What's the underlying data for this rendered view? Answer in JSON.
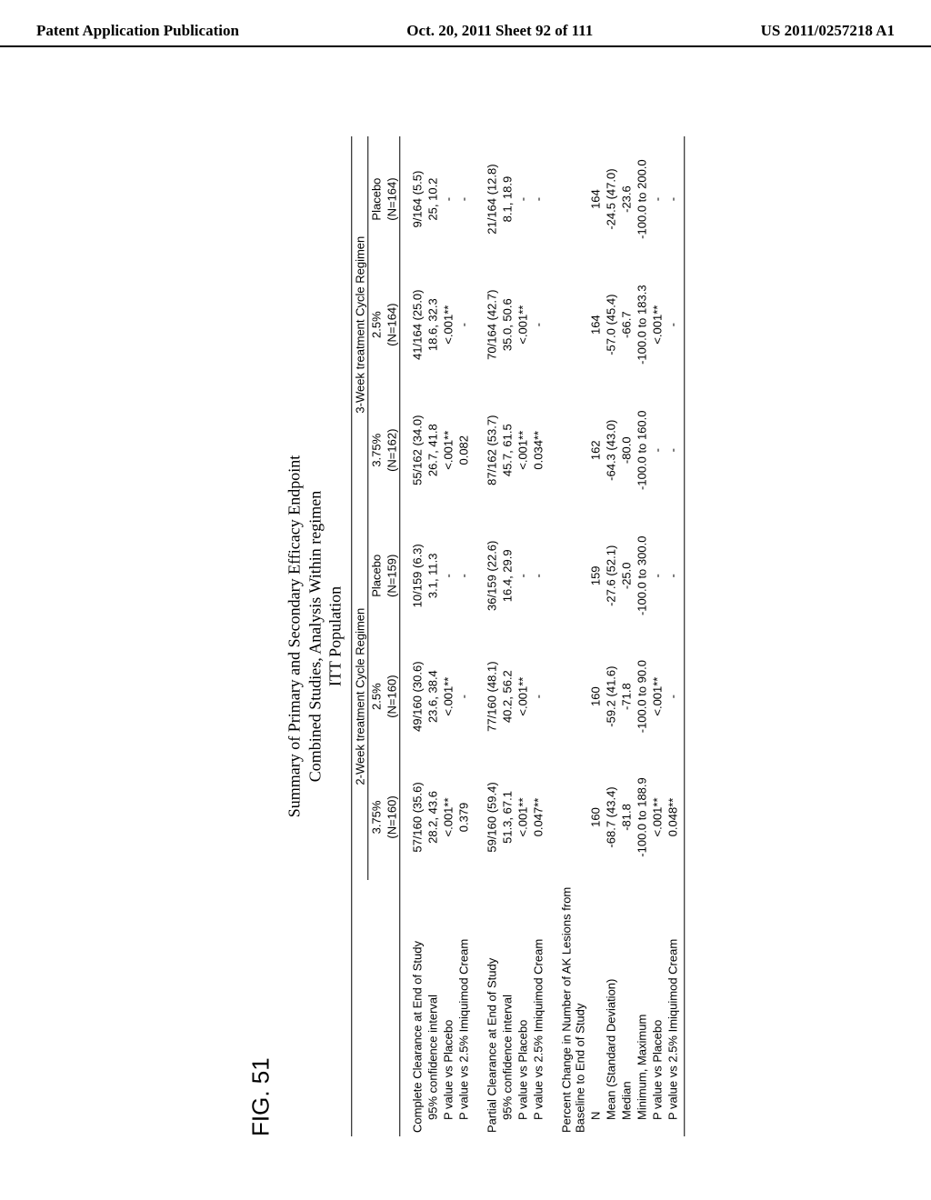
{
  "header": {
    "left": "Patent Application Publication",
    "center": "Oct. 20, 2011  Sheet 92 of 111",
    "right": "US 2011/0257218 A1"
  },
  "figure_label": "FIG. 51",
  "title_lines": [
    "Summary of Primary and Secondary Efficacy Endpoint",
    "Combined Studies, Analysis Within regimen",
    "ITT Population"
  ],
  "column_groups": [
    "2-Week treatment Cycle Regimen",
    "3-Week treatment Cycle Regimen"
  ],
  "columns": [
    {
      "label": "3.75%",
      "n": "(N=160)"
    },
    {
      "label": "2.5%",
      "n": "(N=160)"
    },
    {
      "label": "Placebo",
      "n": "(N=159)"
    },
    {
      "label": "3.75%",
      "n": "(N=162)"
    },
    {
      "label": "2.5%",
      "n": "(N=164)"
    },
    {
      "label": "Placebo",
      "n": "(N=164)"
    }
  ],
  "sections": [
    {
      "rows": [
        {
          "label": "Complete Clearance at End of Study",
          "indent": false,
          "cells": [
            "57/160 (35.6)",
            "49/160 (30.6)",
            "10/159 (6.3)",
            "55/162 (34.0)",
            "41/164 (25.0)",
            "9/164 (5.5)"
          ]
        },
        {
          "label": "95% confidence interval",
          "indent": true,
          "cells": [
            "28.2, 43.6",
            "23.6, 38.4",
            "3.1, 11.3",
            "26.7, 41.8",
            "18.6, 32.3",
            "25, 10.2"
          ]
        },
        {
          "label": "P value vs Placebo",
          "indent": true,
          "cells": [
            "<.001**",
            "<.001**",
            "-",
            "<.001**",
            "<.001**",
            "-"
          ]
        },
        {
          "label": "P value vs 2.5% Imiquimod Cream",
          "indent": true,
          "cells": [
            "0.379",
            "-",
            "-",
            "0.082",
            "-",
            "-"
          ]
        }
      ]
    },
    {
      "rows": [
        {
          "label": "Partial Clearance at End of Study",
          "indent": false,
          "cells": [
            "59/160 (59.4)",
            "77/160 (48.1)",
            "36/159 (22.6)",
            "87/162 (53.7)",
            "70/164 (42.7)",
            "21/164 (12.8)"
          ]
        },
        {
          "label": "95% confidence interval",
          "indent": true,
          "cells": [
            "51.3, 67.1",
            "40.2, 56.2",
            "16.4, 29.9",
            "45.7, 61.5",
            "35.0, 50.6",
            "8.1, 18.9"
          ]
        },
        {
          "label": "P value vs Placebo",
          "indent": true,
          "cells": [
            "<.001**",
            "<.001**",
            "-",
            "<.001**",
            "<.001**",
            "-"
          ]
        },
        {
          "label": "P value vs 2.5% Imiquimod Cream",
          "indent": true,
          "cells": [
            "0.047**",
            "-",
            "-",
            "0.034**",
            "-",
            "-"
          ]
        }
      ]
    },
    {
      "rows": [
        {
          "label": "Percent Change in Number of AK Lesions from Baseline to End of Study",
          "indent": false,
          "cells": [
            "",
            "",
            "",
            "",
            "",
            ""
          ]
        },
        {
          "label": "N",
          "indent": true,
          "cells": [
            "160",
            "160",
            "159",
            "162",
            "164",
            "164"
          ]
        },
        {
          "label": "Mean (Standard Deviation)",
          "indent": true,
          "cells": [
            "-68.7 (43.4)",
            "-59.2 (41.6)",
            "-27.6 (52.1)",
            "-64.3 (43.0)",
            "-57.0 (45.4)",
            "-24.5 (47.0)"
          ]
        },
        {
          "label": "Median",
          "indent": true,
          "cells": [
            "-81.8",
            "-71.8",
            "-25.0",
            "-80.0",
            "-66.7",
            "-23.6"
          ]
        },
        {
          "label": "Minimum, Maximum",
          "indent": true,
          "cells": [
            "-100.0 to 188.9",
            "-100.0 to 90.0",
            "-100.0 to 300.0",
            "-100.0 to 160.0",
            "-100.0 to 183.3",
            "-100.0 to 200.0"
          ]
        },
        {
          "label": "P value vs Placebo",
          "indent": true,
          "cells": [
            "<.001**",
            "<.001**",
            "-",
            "-",
            "<.001**",
            "-"
          ]
        },
        {
          "label": "P value vs 2.5% Imiquimod Cream",
          "indent": true,
          "cells": [
            "0.048**",
            "-",
            "-",
            "-",
            "-",
            "-"
          ]
        }
      ]
    }
  ]
}
